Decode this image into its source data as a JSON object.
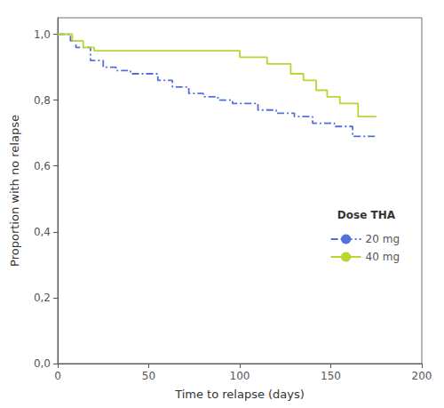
{
  "chart_data": {
    "type": "step",
    "xlabel": "Time to relapse (days)",
    "ylabel": "Proportion with no relapse",
    "xlim": [
      0,
      200
    ],
    "xticks": [
      0,
      50,
      100,
      150,
      200
    ],
    "ylim": [
      0.0,
      1.05
    ],
    "yticks": [
      {
        "value": 0.0,
        "label": "0,0"
      },
      {
        "value": 0.2,
        "label": "0,2"
      },
      {
        "value": 0.4,
        "label": "0,4"
      },
      {
        "value": 0.6,
        "label": "0,6"
      },
      {
        "value": 0.8,
        "label": "0,8"
      },
      {
        "value": 1.0,
        "label": "1,0"
      }
    ],
    "grid": false,
    "legend": "lower right",
    "legend_title": "Dose THA",
    "series": [
      {
        "name": "20 mg",
        "line_style": "dashdot",
        "x": [
          0,
          7,
          10,
          18,
          25,
          32,
          40,
          55,
          63,
          72,
          80,
          88,
          96,
          110,
          120,
          130,
          140,
          152,
          162,
          175
        ],
        "values": [
          1.0,
          0.98,
          0.96,
          0.92,
          0.9,
          0.89,
          0.88,
          0.86,
          0.84,
          0.82,
          0.81,
          0.8,
          0.79,
          0.77,
          0.76,
          0.75,
          0.73,
          0.72,
          0.69,
          0.69
        ]
      },
      {
        "name": "40 mg",
        "line_style": "solid",
        "x": [
          0,
          8,
          14,
          20,
          85,
          100,
          115,
          128,
          135,
          142,
          148,
          155,
          165,
          175
        ],
        "values": [
          1.0,
          0.98,
          0.96,
          0.95,
          0.95,
          0.93,
          0.91,
          0.88,
          0.86,
          0.83,
          0.81,
          0.79,
          0.75,
          0.75
        ]
      }
    ]
  }
}
